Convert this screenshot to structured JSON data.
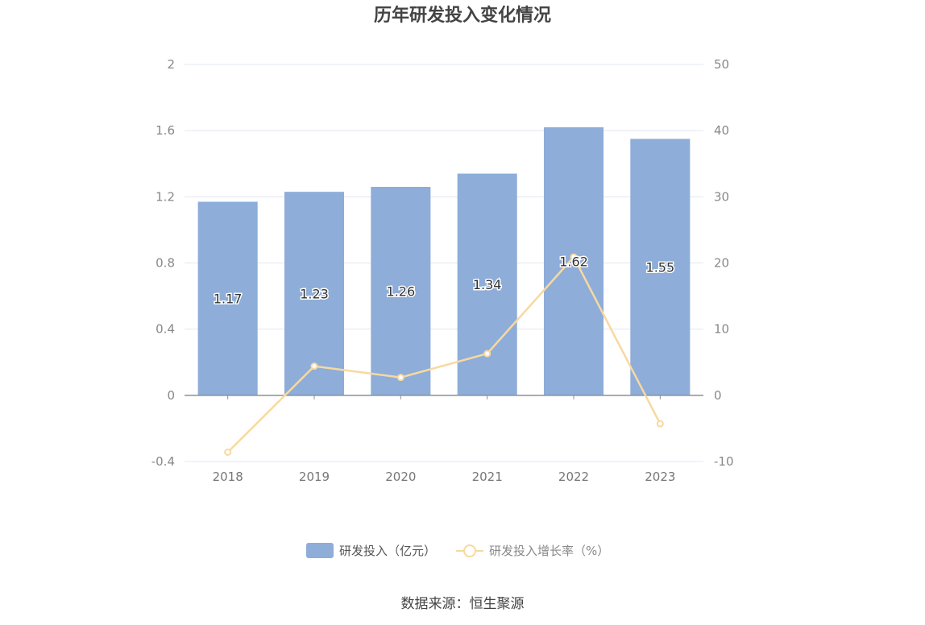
{
  "chart_data": {
    "type": "bar",
    "title": "历年研发投入变化情况",
    "categories": [
      "2018",
      "2019",
      "2020",
      "2021",
      "2022",
      "2023"
    ],
    "series": [
      {
        "name": "研发投入（亿元）",
        "type": "bar",
        "axis": "left",
        "values": [
          1.17,
          1.23,
          1.26,
          1.34,
          1.62,
          1.55
        ],
        "labels": [
          "1.17",
          "1.23",
          "1.26",
          "1.34",
          "1.62",
          "1.55"
        ],
        "color": "#8eadd9"
      },
      {
        "name": "研发投入增长率（%）",
        "type": "line",
        "axis": "right",
        "values": [
          -8.6,
          4.4,
          2.7,
          6.3,
          20.9,
          -4.3
        ],
        "color": "#f7d9a0"
      }
    ],
    "y_left": {
      "min": -0.4,
      "max": 2,
      "ticks": [
        "2",
        "1.6",
        "1.2",
        "0.8",
        "0.4",
        "0",
        "-0.4"
      ]
    },
    "y_right": {
      "min": -10,
      "max": 50,
      "ticks": [
        "50",
        "40",
        "30",
        "20",
        "10",
        "0",
        "-10"
      ]
    },
    "grid": true,
    "legend_position": "bottom-center"
  },
  "source_text": "数据来源：恒生聚源"
}
